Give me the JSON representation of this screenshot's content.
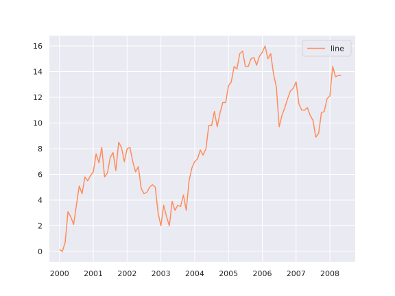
{
  "chart_data": {
    "type": "line",
    "title": "",
    "xlabel": "",
    "ylabel": "",
    "x_ticks": [
      "2000",
      "2001",
      "2002",
      "2003",
      "2004",
      "2005",
      "2006",
      "2007",
      "2008"
    ],
    "y_ticks": [
      0,
      2,
      4,
      6,
      8,
      10,
      12,
      14,
      16
    ],
    "xlim": [
      1999.7,
      2008.75
    ],
    "ylim": [
      -0.8,
      16.8
    ],
    "grid": true,
    "legend": "top-right",
    "colors": {
      "background": "#EAEAF2",
      "grid": "#FFFFFF",
      "line": "#FF8C5A"
    },
    "series": [
      {
        "name": "line",
        "x": [
          2000.0,
          2000.083,
          2000.167,
          2000.25,
          2000.333,
          2000.417,
          2000.5,
          2000.583,
          2000.667,
          2000.75,
          2000.833,
          2000.917,
          2001.0,
          2001.083,
          2001.167,
          2001.25,
          2001.333,
          2001.417,
          2001.5,
          2001.583,
          2001.667,
          2001.75,
          2001.833,
          2001.917,
          2002.0,
          2002.083,
          2002.167,
          2002.25,
          2002.333,
          2002.417,
          2002.5,
          2002.583,
          2002.667,
          2002.75,
          2002.833,
          2002.917,
          2003.0,
          2003.083,
          2003.167,
          2003.25,
          2003.333,
          2003.417,
          2003.5,
          2003.583,
          2003.667,
          2003.75,
          2003.833,
          2003.917,
          2004.0,
          2004.083,
          2004.167,
          2004.25,
          2004.333,
          2004.417,
          2004.5,
          2004.583,
          2004.667,
          2004.75,
          2004.833,
          2004.917,
          2005.0,
          2005.083,
          2005.167,
          2005.25,
          2005.333,
          2005.417,
          2005.5,
          2005.583,
          2005.667,
          2005.75,
          2005.833,
          2005.917,
          2006.0,
          2006.083,
          2006.167,
          2006.25,
          2006.333,
          2006.417,
          2006.5,
          2006.583,
          2006.667,
          2006.75,
          2006.833,
          2006.917,
          2007.0,
          2007.083,
          2007.167,
          2007.25,
          2007.333,
          2007.417,
          2007.5,
          2007.583,
          2007.667,
          2007.75,
          2007.833,
          2007.917,
          2008.0,
          2008.083,
          2008.167,
          2008.25,
          2008.333
        ],
        "y": [
          0.15,
          0.0,
          0.7,
          3.1,
          2.7,
          2.1,
          3.6,
          5.1,
          4.5,
          5.8,
          5.5,
          5.9,
          6.2,
          7.6,
          6.9,
          8.1,
          5.8,
          6.1,
          7.3,
          7.7,
          6.3,
          8.5,
          8.1,
          7.0,
          8.0,
          8.1,
          7.0,
          6.2,
          6.6,
          4.9,
          4.5,
          4.6,
          5.0,
          5.2,
          5.0,
          3.0,
          2.0,
          3.6,
          2.7,
          2.0,
          3.9,
          3.2,
          3.6,
          3.5,
          4.4,
          3.2,
          5.5,
          6.5,
          7.0,
          7.2,
          7.9,
          7.5,
          8.0,
          9.8,
          9.8,
          10.9,
          9.7,
          10.8,
          11.6,
          11.6,
          12.9,
          13.2,
          14.4,
          14.2,
          15.4,
          15.6,
          14.4,
          14.4,
          15.0,
          15.1,
          14.5,
          15.2,
          15.5,
          16.0,
          15.0,
          15.4,
          13.8,
          12.8,
          9.7,
          10.6,
          11.2,
          11.9,
          12.5,
          12.7,
          13.2,
          11.5,
          11.0,
          11.0,
          11.2,
          10.6,
          10.2,
          8.9,
          9.2,
          10.8,
          10.9,
          11.9,
          12.1,
          14.4,
          13.6,
          13.7,
          13.7
        ]
      }
    ]
  }
}
